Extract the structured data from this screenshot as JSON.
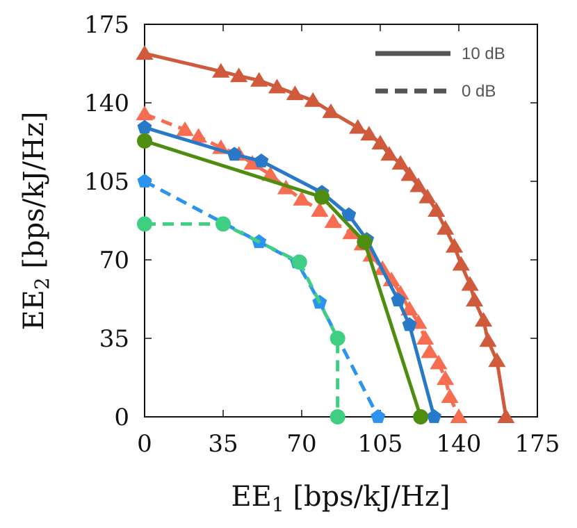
{
  "chart_data": {
    "type": "line",
    "xlabel": {
      "main": "EE",
      "sub": "1",
      "rest": " [bps/kJ/Hz]"
    },
    "ylabel": {
      "main": "EE",
      "sub": "2",
      "rest": " [bps/kJ/Hz]"
    },
    "xlim": [
      0,
      175
    ],
    "ylim": [
      0,
      175
    ],
    "xticks": [
      0,
      35,
      70,
      105,
      140,
      175
    ],
    "yticks": [
      0,
      35,
      70,
      105,
      140,
      175
    ],
    "xtick_labels": [
      "0",
      "35",
      "70",
      "105",
      "140",
      "175"
    ],
    "ytick_labels": [
      "0",
      "35",
      "70",
      "105",
      "140",
      "175"
    ],
    "legend": {
      "placement": "top-right",
      "entries": [
        {
          "label": "10 dB",
          "style": "solid"
        },
        {
          "label": "0 dB",
          "style": "dashed"
        }
      ]
    },
    "series": [
      {
        "color": "#cf5a3c",
        "style": "solid",
        "marker": "triangle",
        "x": [
          0,
          34,
          42,
          51,
          59,
          67,
          75,
          83,
          95,
          100,
          105,
          109,
          114,
          118,
          122,
          126,
          130,
          134,
          138,
          141,
          145,
          147,
          151,
          153,
          157,
          161
        ],
        "y": [
          162,
          154,
          152,
          150,
          147,
          144,
          141,
          136,
          129,
          126,
          122,
          117,
          113,
          108,
          103,
          98,
          92,
          84,
          76,
          68,
          59,
          52,
          43,
          34,
          25,
          0
        ]
      },
      {
        "color": "#f76d52",
        "style": "dashed",
        "marker": "triangle",
        "x": [
          0,
          18,
          24,
          34,
          42,
          48,
          56,
          63,
          70,
          78,
          84,
          92,
          97,
          101,
          106,
          110,
          114,
          118,
          122,
          125,
          127,
          131,
          134,
          136,
          140
        ],
        "y": [
          135,
          128,
          125,
          120,
          117,
          113,
          108,
          102,
          97,
          92,
          87,
          82,
          77,
          72,
          66,
          61,
          55,
          48,
          42,
          35,
          29,
          24,
          17,
          9,
          0
        ]
      },
      {
        "color": "#2879c8",
        "style": "solid",
        "marker": "pentagon",
        "x": [
          0,
          40,
          52,
          79,
          91,
          99,
          113,
          118,
          129
        ],
        "y": [
          129,
          117,
          114,
          100,
          90,
          79,
          52,
          41,
          0
        ]
      },
      {
        "color": "#4f8d10",
        "style": "solid",
        "marker": "circle",
        "x": [
          0,
          79,
          98,
          123
        ],
        "y": [
          123,
          98,
          78,
          0
        ]
      },
      {
        "color": "#2c93f0",
        "style": "dashed",
        "marker": "pentagon",
        "x": [
          0,
          51,
          68,
          78,
          104
        ],
        "y": [
          105,
          78,
          69,
          51,
          0
        ]
      },
      {
        "color": "#3ecf82",
        "style": "dashed",
        "marker": "circle",
        "x": [
          0,
          35,
          69,
          86,
          86
        ],
        "y": [
          86,
          86,
          69,
          35,
          0
        ]
      }
    ]
  }
}
